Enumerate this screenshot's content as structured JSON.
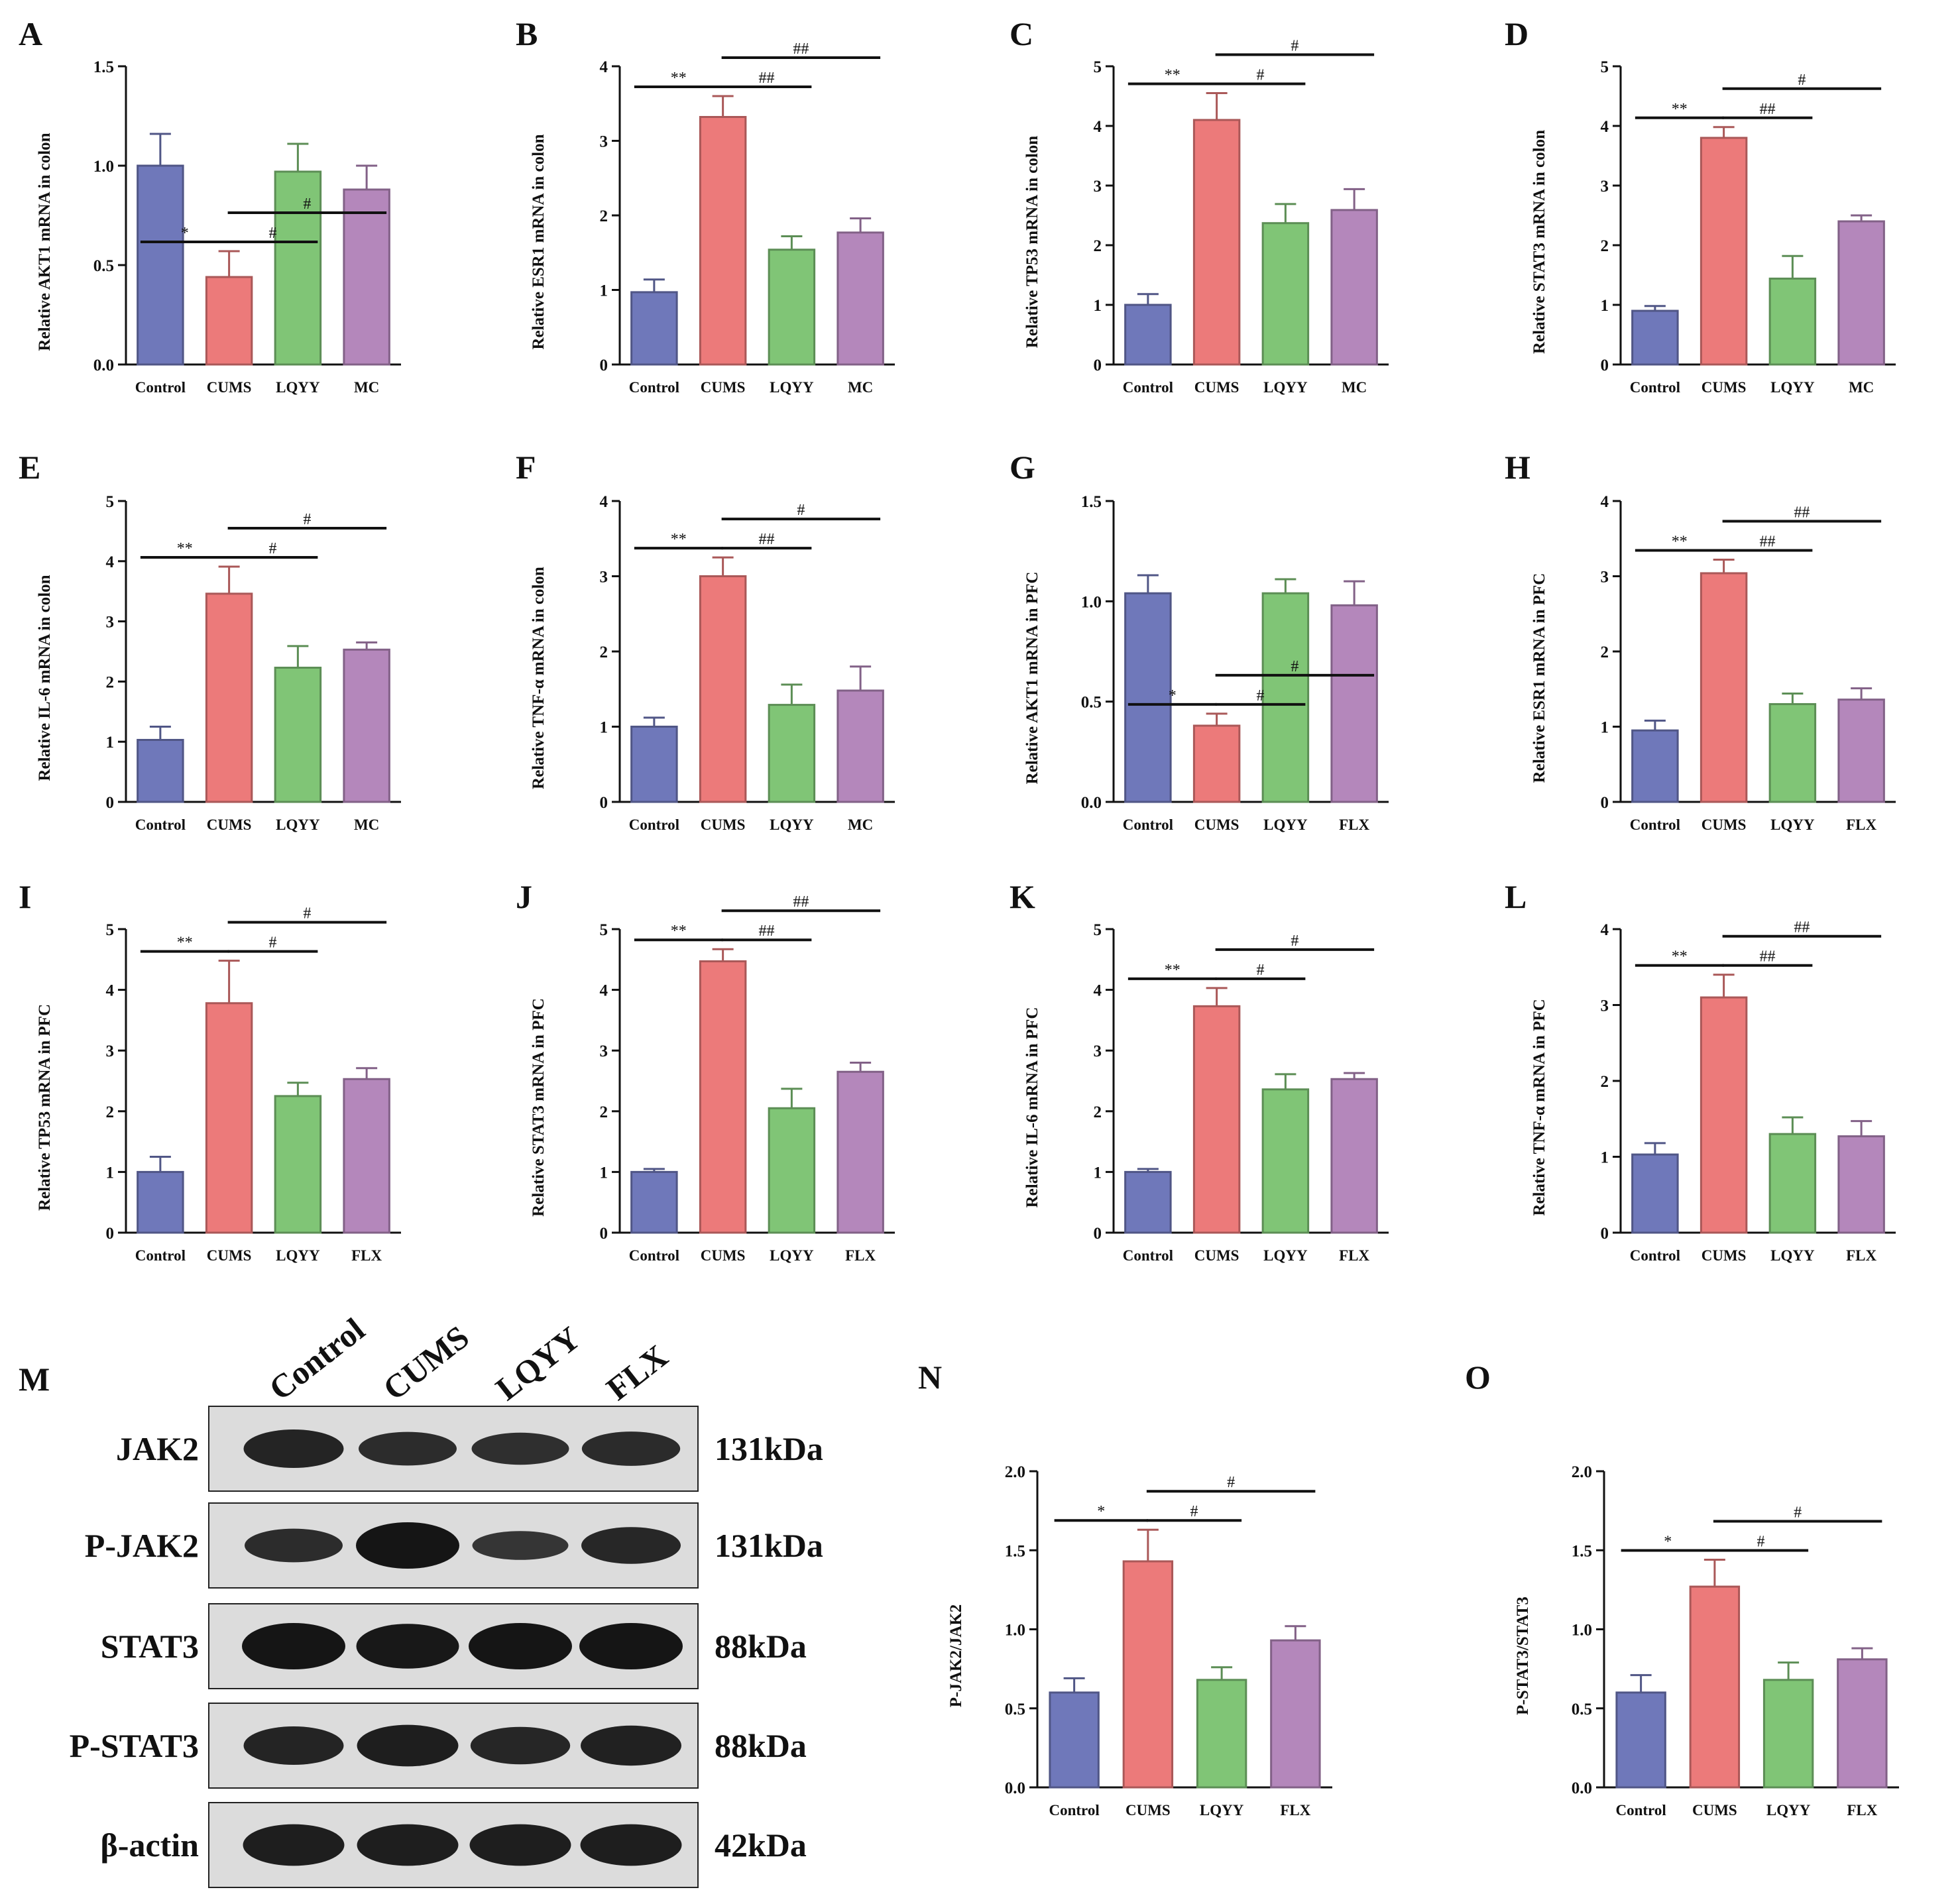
{
  "colors": {
    "Control": "#6f78ba",
    "CUMS": "#ec7a7a",
    "LQYY": "#80c576",
    "MC": "#b487bb",
    "FLX": "#b487bb"
  },
  "chart_data": [
    {
      "id": "A",
      "type": "bar",
      "letter": "A",
      "ylabel": "Relative AKT1 mRNA in colon",
      "categories": [
        "Control",
        "CUMS",
        "LQYY",
        "MC"
      ],
      "values": [
        1.0,
        0.44,
        0.97,
        0.88
      ],
      "errors": [
        0.16,
        0.13,
        0.14,
        0.12
      ],
      "ylim": [
        0,
        1.5
      ],
      "ticks": [
        0,
        0.5,
        1.0,
        1.5
      ],
      "tick_labels": [
        "0.0",
        "0.5",
        "1.0",
        "1.5"
      ],
      "sig": [
        {
          "from": 0,
          "to": 1,
          "label": "*"
        },
        {
          "from": 1,
          "to": 2,
          "label": "#"
        },
        {
          "from": 1,
          "to": 3,
          "label": "#"
        }
      ]
    },
    {
      "id": "B",
      "type": "bar",
      "letter": "B",
      "ylabel": "Relative ESR1 mRNA in colon",
      "categories": [
        "Control",
        "CUMS",
        "LQYY",
        "MC"
      ],
      "values": [
        0.97,
        3.32,
        1.54,
        1.77
      ],
      "errors": [
        0.17,
        0.28,
        0.18,
        0.19
      ],
      "ylim": [
        0,
        4
      ],
      "ticks": [
        0,
        1,
        2,
        3,
        4
      ],
      "tick_labels": [
        "0",
        "1",
        "2",
        "3",
        "4"
      ],
      "sig": [
        {
          "from": 0,
          "to": 1,
          "label": "**"
        },
        {
          "from": 1,
          "to": 2,
          "label": "##"
        },
        {
          "from": 1,
          "to": 3,
          "label": "##"
        }
      ]
    },
    {
      "id": "C",
      "type": "bar",
      "letter": "C",
      "ylabel": "Relative TP53 mRNA in colon",
      "categories": [
        "Control",
        "CUMS",
        "LQYY",
        "MC"
      ],
      "values": [
        1.0,
        4.1,
        2.37,
        2.59
      ],
      "errors": [
        0.18,
        0.45,
        0.32,
        0.35
      ],
      "ylim": [
        0,
        5
      ],
      "ticks": [
        0,
        1,
        2,
        3,
        4,
        5
      ],
      "tick_labels": [
        "0",
        "1",
        "2",
        "3",
        "4",
        "5"
      ],
      "sig": [
        {
          "from": 0,
          "to": 1,
          "label": "**"
        },
        {
          "from": 1,
          "to": 2,
          "label": "#"
        },
        {
          "from": 1,
          "to": 3,
          "label": "#"
        }
      ]
    },
    {
      "id": "D",
      "type": "bar",
      "letter": "D",
      "ylabel": "Relative STAT3 mRNA in colon",
      "categories": [
        "Control",
        "CUMS",
        "LQYY",
        "MC"
      ],
      "values": [
        0.9,
        3.8,
        1.44,
        2.4
      ],
      "errors": [
        0.08,
        0.18,
        0.38,
        0.1
      ],
      "ylim": [
        0,
        5
      ],
      "ticks": [
        0,
        1,
        2,
        3,
        4,
        5
      ],
      "tick_labels": [
        "0",
        "1",
        "2",
        "3",
        "4",
        "5"
      ],
      "sig": [
        {
          "from": 0,
          "to": 1,
          "label": "**"
        },
        {
          "from": 1,
          "to": 2,
          "label": "##"
        },
        {
          "from": 1,
          "to": 3,
          "label": "#"
        }
      ]
    },
    {
      "id": "E",
      "type": "bar",
      "letter": "E",
      "ylabel": "Relative IL-6 mRNA in colon",
      "categories": [
        "Control",
        "CUMS",
        "LQYY",
        "MC"
      ],
      "values": [
        1.03,
        3.46,
        2.23,
        2.53
      ],
      "errors": [
        0.22,
        0.45,
        0.36,
        0.12
      ],
      "ylim": [
        0,
        5
      ],
      "ticks": [
        0,
        1,
        2,
        3,
        4,
        5
      ],
      "tick_labels": [
        "0",
        "1",
        "2",
        "3",
        "4",
        "5"
      ],
      "sig": [
        {
          "from": 0,
          "to": 1,
          "label": "**"
        },
        {
          "from": 1,
          "to": 2,
          "label": "#"
        },
        {
          "from": 1,
          "to": 3,
          "label": "#"
        }
      ]
    },
    {
      "id": "F",
      "type": "bar",
      "letter": "F",
      "ylabel": "Relative TNF-α mRNA in colon",
      "categories": [
        "Control",
        "CUMS",
        "LQYY",
        "MC"
      ],
      "values": [
        1.0,
        3.0,
        1.29,
        1.48
      ],
      "errors": [
        0.12,
        0.25,
        0.27,
        0.32
      ],
      "ylim": [
        0,
        4
      ],
      "ticks": [
        0,
        1,
        2,
        3,
        4
      ],
      "tick_labels": [
        "0",
        "1",
        "2",
        "3",
        "4"
      ],
      "sig": [
        {
          "from": 0,
          "to": 1,
          "label": "**"
        },
        {
          "from": 1,
          "to": 2,
          "label": "##"
        },
        {
          "from": 1,
          "to": 3,
          "label": "#"
        }
      ]
    },
    {
      "id": "G",
      "type": "bar",
      "letter": "G",
      "ylabel": "Relative AKT1 mRNA in PFC",
      "categories": [
        "Control",
        "CUMS",
        "LQYY",
        "FLX"
      ],
      "values": [
        1.04,
        0.38,
        1.04,
        0.98
      ],
      "errors": [
        0.09,
        0.06,
        0.07,
        0.12
      ],
      "ylim": [
        0,
        1.5
      ],
      "ticks": [
        0,
        0.5,
        1.0,
        1.5
      ],
      "tick_labels": [
        "0.0",
        "0.5",
        "1.0",
        "1.5"
      ],
      "sig": [
        {
          "from": 0,
          "to": 1,
          "label": "*"
        },
        {
          "from": 1,
          "to": 2,
          "label": "#"
        },
        {
          "from": 1,
          "to": 3,
          "label": "#"
        }
      ]
    },
    {
      "id": "H",
      "type": "bar",
      "letter": "H",
      "ylabel": "Relative ESR1 mRNA in PFC",
      "categories": [
        "Control",
        "CUMS",
        "LQYY",
        "FLX"
      ],
      "values": [
        0.95,
        3.04,
        1.3,
        1.36
      ],
      "errors": [
        0.13,
        0.18,
        0.14,
        0.15
      ],
      "ylim": [
        0,
        4
      ],
      "ticks": [
        0,
        1,
        2,
        3,
        4
      ],
      "tick_labels": [
        "0",
        "1",
        "2",
        "3",
        "4"
      ],
      "sig": [
        {
          "from": 0,
          "to": 1,
          "label": "**"
        },
        {
          "from": 1,
          "to": 2,
          "label": "##"
        },
        {
          "from": 1,
          "to": 3,
          "label": "##"
        }
      ]
    },
    {
      "id": "I",
      "type": "bar",
      "letter": "I",
      "ylabel": "Relative TP53 mRNA in PFC",
      "categories": [
        "Control",
        "CUMS",
        "LQYY",
        "FLX"
      ],
      "values": [
        1.0,
        3.78,
        2.25,
        2.53
      ],
      "errors": [
        0.25,
        0.7,
        0.22,
        0.18
      ],
      "ylim": [
        0,
        5
      ],
      "ticks": [
        0,
        1,
        2,
        3,
        4,
        5
      ],
      "tick_labels": [
        "0",
        "1",
        "2",
        "3",
        "4",
        "5"
      ],
      "sig": [
        {
          "from": 0,
          "to": 1,
          "label": "**"
        },
        {
          "from": 1,
          "to": 2,
          "label": "#"
        },
        {
          "from": 1,
          "to": 3,
          "label": "#"
        }
      ]
    },
    {
      "id": "J",
      "type": "bar",
      "letter": "J",
      "ylabel": "Relative STAT3 mRNA in PFC",
      "categories": [
        "Control",
        "CUMS",
        "LQYY",
        "FLX"
      ],
      "values": [
        1.0,
        4.47,
        2.05,
        2.65
      ],
      "errors": [
        0.05,
        0.2,
        0.32,
        0.15
      ],
      "ylim": [
        0,
        5
      ],
      "ticks": [
        0,
        1,
        2,
        3,
        4,
        5
      ],
      "tick_labels": [
        "0",
        "1",
        "2",
        "3",
        "4",
        "5"
      ],
      "sig": [
        {
          "from": 0,
          "to": 1,
          "label": "**"
        },
        {
          "from": 1,
          "to": 2,
          "label": "##"
        },
        {
          "from": 1,
          "to": 3,
          "label": "##"
        }
      ]
    },
    {
      "id": "K",
      "type": "bar",
      "letter": "K",
      "ylabel": "Relative IL-6 mRNA in PFC",
      "categories": [
        "Control",
        "CUMS",
        "LQYY",
        "FLX"
      ],
      "values": [
        1.0,
        3.73,
        2.36,
        2.53
      ],
      "errors": [
        0.05,
        0.3,
        0.25,
        0.1
      ],
      "ylim": [
        0,
        5
      ],
      "ticks": [
        0,
        1,
        2,
        3,
        4,
        5
      ],
      "tick_labels": [
        "0",
        "1",
        "2",
        "3",
        "4",
        "5"
      ],
      "sig": [
        {
          "from": 0,
          "to": 1,
          "label": "**"
        },
        {
          "from": 1,
          "to": 2,
          "label": "#"
        },
        {
          "from": 1,
          "to": 3,
          "label": "#"
        }
      ]
    },
    {
      "id": "L",
      "type": "bar",
      "letter": "L",
      "ylabel": "Relative TNF-α mRNA in PFC",
      "categories": [
        "Control",
        "CUMS",
        "LQYY",
        "FLX"
      ],
      "values": [
        1.03,
        3.1,
        1.3,
        1.27
      ],
      "errors": [
        0.15,
        0.3,
        0.22,
        0.2
      ],
      "ylim": [
        0,
        4
      ],
      "ticks": [
        0,
        1,
        2,
        3,
        4
      ],
      "tick_labels": [
        "0",
        "1",
        "2",
        "3",
        "4"
      ],
      "sig": [
        {
          "from": 0,
          "to": 1,
          "label": "**"
        },
        {
          "from": 1,
          "to": 2,
          "label": "##"
        },
        {
          "from": 1,
          "to": 3,
          "label": "##"
        }
      ]
    },
    {
      "id": "N",
      "type": "bar",
      "letter": "N",
      "ylabel": "P-JAK2/JAK2",
      "categories": [
        "Control",
        "CUMS",
        "LQYY",
        "FLX"
      ],
      "values": [
        0.6,
        1.43,
        0.68,
        0.93
      ],
      "errors": [
        0.09,
        0.2,
        0.08,
        0.09
      ],
      "ylim": [
        0,
        2.0
      ],
      "ticks": [
        0,
        0.5,
        1.0,
        1.5,
        2.0
      ],
      "tick_labels": [
        "0.0",
        "0.5",
        "1.0",
        "1.5",
        "2.0"
      ],
      "sig": [
        {
          "from": 0,
          "to": 1,
          "label": "*"
        },
        {
          "from": 1,
          "to": 2,
          "label": "#"
        },
        {
          "from": 1,
          "to": 3,
          "label": "#"
        }
      ]
    },
    {
      "id": "O",
      "type": "bar",
      "letter": "O",
      "ylabel": "P-STAT3/STAT3",
      "categories": [
        "Control",
        "CUMS",
        "LQYY",
        "FLX"
      ],
      "values": [
        0.6,
        1.27,
        0.68,
        0.81
      ],
      "errors": [
        0.11,
        0.17,
        0.11,
        0.07
      ],
      "ylim": [
        0,
        2.0
      ],
      "ticks": [
        0,
        0.5,
        1.0,
        1.5,
        2.0
      ],
      "tick_labels": [
        "0.0",
        "0.5",
        "1.0",
        "1.5",
        "2.0"
      ],
      "sig": [
        {
          "from": 0,
          "to": 1,
          "label": "*"
        },
        {
          "from": 1,
          "to": 2,
          "label": "#"
        },
        {
          "from": 1,
          "to": 3,
          "label": "#"
        }
      ]
    }
  ],
  "blot": {
    "letter": "M",
    "lanes": [
      "Control",
      "CUMS",
      "LQYY",
      "FLX"
    ],
    "rows": [
      {
        "label": "JAK2",
        "kda": "131kDa",
        "intensity": [
          0.75,
          0.6,
          0.55,
          0.62
        ]
      },
      {
        "label": "P-JAK2",
        "kda": "131kDa",
        "intensity": [
          0.6,
          1.0,
          0.45,
          0.7
        ]
      },
      {
        "label": "STAT3",
        "kda": "88kDa",
        "intensity": [
          1.0,
          0.95,
          1.0,
          1.0
        ]
      },
      {
        "label": "P-STAT3",
        "kda": "88kDa",
        "intensity": [
          0.75,
          0.85,
          0.72,
          0.8
        ]
      },
      {
        "label": "β-actin",
        "kda": "42kDa",
        "intensity": [
          0.85,
          0.85,
          0.85,
          0.85
        ]
      }
    ]
  }
}
